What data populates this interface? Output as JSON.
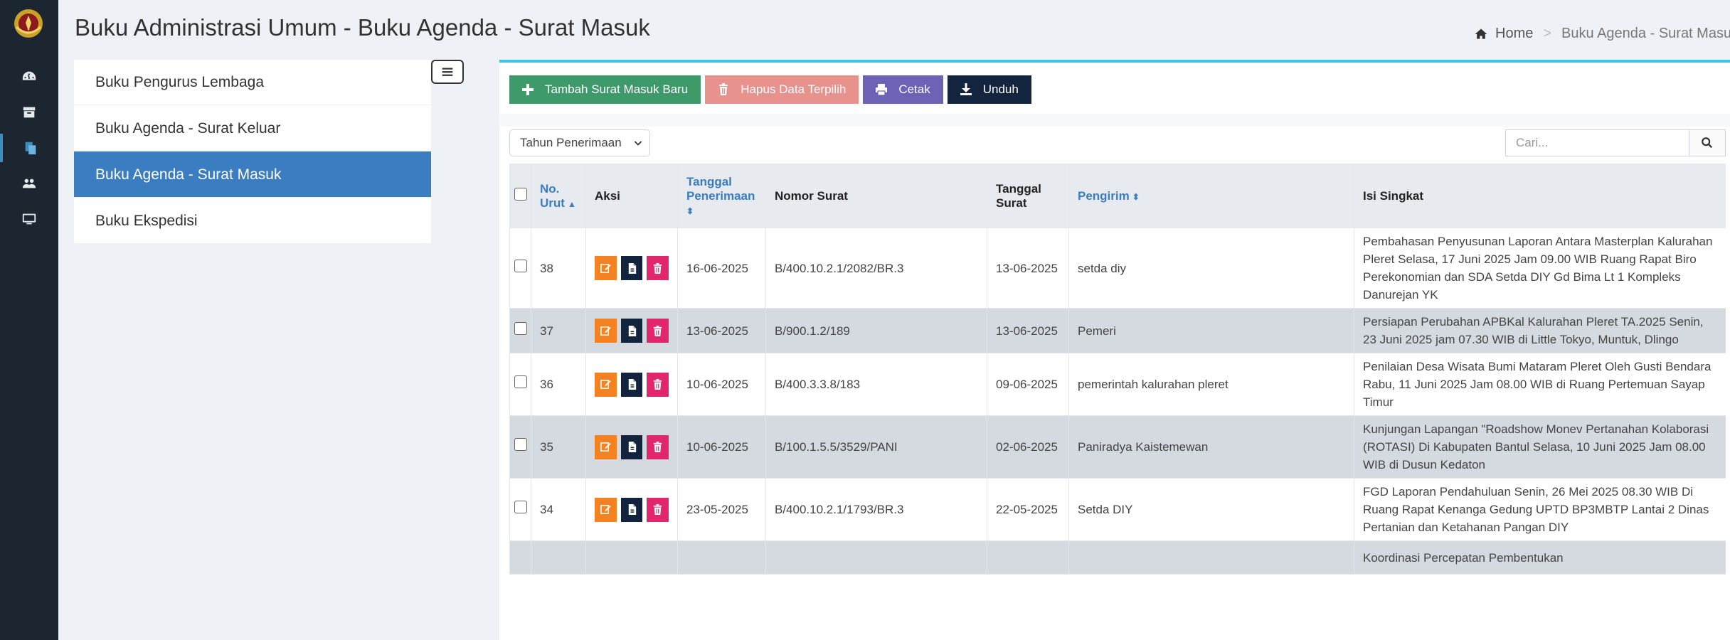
{
  "header": {
    "title": "Buku Administrasi Umum - Buku Agenda - Surat Masuk",
    "breadcrumb": {
      "home": "Home",
      "separator": ">",
      "current": "Buku Agenda - Surat Masuk"
    }
  },
  "submenu": {
    "items": [
      {
        "label": "Buku Pengurus Lembaga",
        "active": false
      },
      {
        "label": "Buku Agenda - Surat Keluar",
        "active": false
      },
      {
        "label": "Buku Agenda - Surat Masuk",
        "active": true
      },
      {
        "label": "Buku Ekspedisi",
        "active": false
      }
    ]
  },
  "toolbar": {
    "add_label": "Tambah Surat Masuk Baru",
    "delete_label": "Hapus Data Terpilih",
    "print_label": "Cetak",
    "download_label": "Unduh"
  },
  "filters": {
    "year_select": "Tahun Penerimaan",
    "search_placeholder": "Cari..."
  },
  "table": {
    "headers": {
      "no": "No. Urut",
      "aksi": "Aksi",
      "tanggal_penerimaan": "Tanggal Penerimaan",
      "nomor_surat": "Nomor Surat",
      "tanggal_surat": "Tanggal Surat",
      "pengirim": "Pengirim",
      "isi_singkat": "Isi Singkat"
    },
    "rows": [
      {
        "no": "38",
        "tgl_terima": "16-06-2025",
        "nomor": "B/400.10.2.1/2082/BR.3",
        "tgl_surat": "13-06-2025",
        "pengirim": "setda diy",
        "isi": "Pembahasan Penyusunan Laporan Antara Masterplan Kalurahan Pleret Selasa, 17 Juni 2025 Jam 09.00 WIB Ruang Rapat Biro Perekonomian dan SDA Setda DIY Gd Bima Lt 1 Kompleks Danurejan YK"
      },
      {
        "no": "37",
        "tgl_terima": "13-06-2025",
        "nomor": "B/900.1.2/189",
        "tgl_surat": "13-06-2025",
        "pengirim": "Pemeri",
        "isi": "Persiapan Perubahan APBKal Kalurahan Pleret TA.2025 Senin, 23 Juni 2025 jam 07.30 WIB di Little Tokyo, Muntuk, Dlingo"
      },
      {
        "no": "36",
        "tgl_terima": "10-06-2025",
        "nomor": "B/400.3.3.8/183",
        "tgl_surat": "09-06-2025",
        "pengirim": "pemerintah kalurahan pleret",
        "isi": "Penilaian Desa Wisata Bumi Mataram Pleret Oleh Gusti Bendara Rabu, 11 Juni 2025 Jam 08.00 WIB di Ruang Pertemuan Sayap Timur"
      },
      {
        "no": "35",
        "tgl_terima": "10-06-2025",
        "nomor": "B/100.1.5.5/3529/PANI",
        "tgl_surat": "02-06-2025",
        "pengirim": "Paniradya Kaistemewan",
        "isi": "Kunjungan Lapangan \"Roadshow Monev Pertanahan Kolaborasi (ROTASI) Di Kabupaten Bantul Selasa, 10 Juni 2025 Jam 08.00 WIB di Dusun Kedaton"
      },
      {
        "no": "34",
        "tgl_terima": "23-05-2025",
        "nomor": "B/400.10.2.1/1793/BR.3",
        "tgl_surat": "22-05-2025",
        "pengirim": "Setda DIY",
        "isi": "FGD Laporan Pendahuluan Senin, 26 Mei 2025 08.30 WIB Di Ruang Rapat Kenanga Gedung UPTD BP3MBTP Lantai 2 Dinas Pertanian dan Ketahanan Pangan DIY"
      },
      {
        "no": "",
        "tgl_terima": "",
        "nomor": "",
        "tgl_surat": "",
        "pengirim": "",
        "isi": "Koordinasi Percepatan Pembentukan"
      }
    ]
  },
  "icons": {
    "rail": [
      "emblem-logo",
      "dashboard-icon",
      "archive-icon",
      "documents-icon",
      "users-icon",
      "monitor-icon"
    ],
    "row_actions": [
      "edit-icon",
      "document-icon",
      "trash-icon"
    ]
  },
  "colors": {
    "rail_bg": "#1c2630",
    "active_menu": "#3a7dc0",
    "box_top_border": "#3ec5e3",
    "btn_add": "#3e9a6a",
    "btn_delete": "#e8928e",
    "btn_print": "#6c62b6",
    "btn_download": "#13243f",
    "action_edit": "#f58220",
    "action_doc": "#12233d",
    "action_delete": "#e2266d"
  }
}
